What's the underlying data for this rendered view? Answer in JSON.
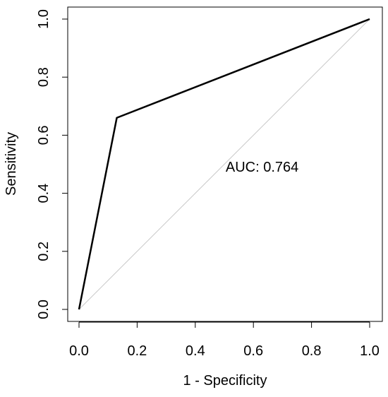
{
  "chart_data": {
    "type": "line",
    "title": "",
    "xlabel": "1 - Specificity",
    "ylabel": "Sensitivity",
    "xlim": [
      0,
      1
    ],
    "ylim": [
      0,
      1
    ],
    "x_ticks": [
      0.0,
      0.2,
      0.4,
      0.6,
      0.8,
      1.0
    ],
    "y_ticks": [
      0.0,
      0.2,
      0.4,
      0.6,
      0.8,
      1.0
    ],
    "x_tick_labels": [
      "0.0",
      "0.2",
      "0.4",
      "0.6",
      "0.8",
      "1.0"
    ],
    "y_tick_labels": [
      "0.0",
      "0.2",
      "0.4",
      "0.6",
      "0.8",
      "1.0"
    ],
    "grid": false,
    "series": [
      {
        "x": [
          0.0,
          0.13,
          1.0
        ],
        "y": [
          0.0,
          0.66,
          1.0
        ],
        "color": "#000000"
      }
    ],
    "reference_line": {
      "x": [
        0.0,
        1.0
      ],
      "y": [
        0.0,
        1.0
      ],
      "color": "#c8c8c8"
    },
    "annotations": [
      {
        "text": "AUC: 0.764",
        "x": 0.63,
        "y": 0.475
      }
    ]
  }
}
